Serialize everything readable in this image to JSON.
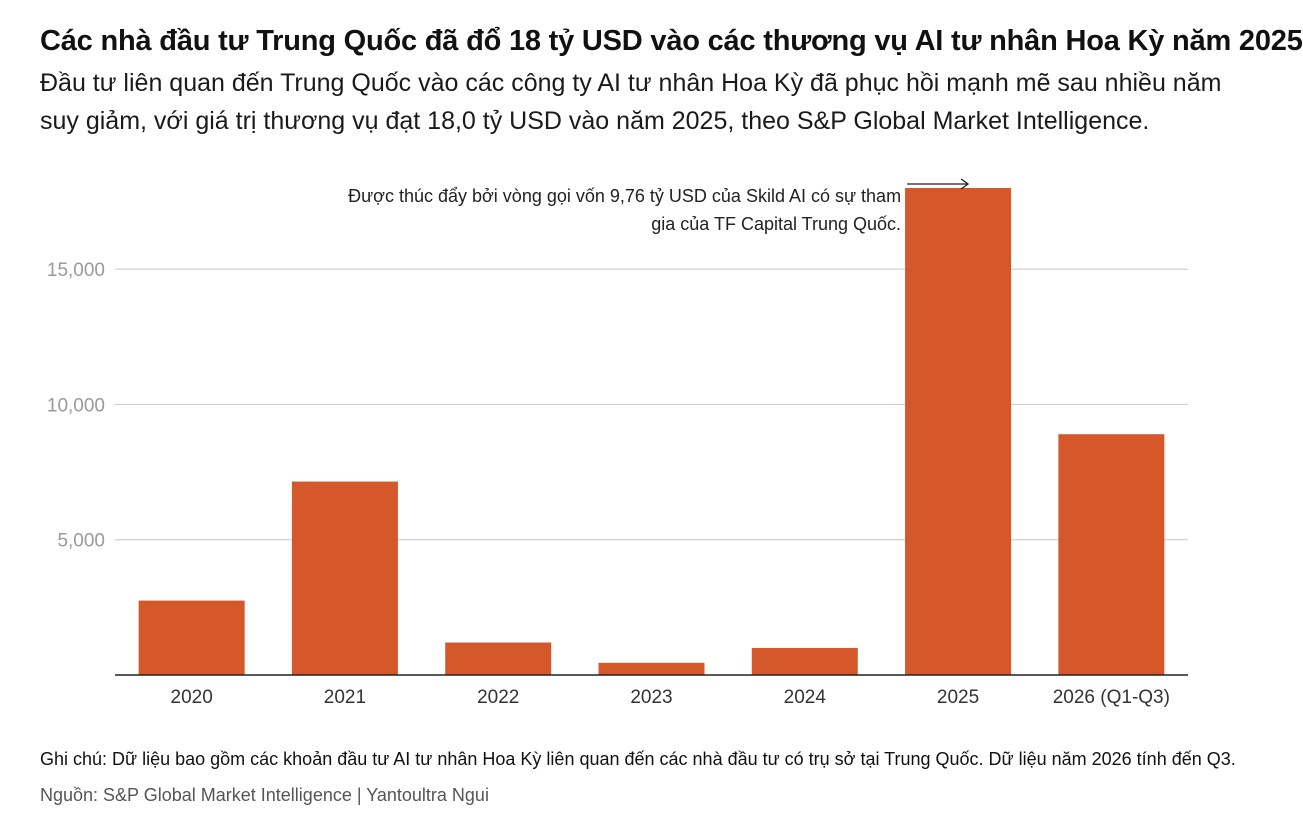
{
  "header": {
    "title": "Các nhà đầu tư Trung Quốc đã đổ 18 tỷ USD vào các thương vụ AI tư nhân Hoa Kỳ năm 2025",
    "subtitle": "Đầu tư liên quan đến Trung Quốc vào các công ty AI tư nhân Hoa Kỳ đã phục hồi mạnh mẽ sau nhiều năm suy giảm, với giá trị thương vụ đạt 18,0 tỷ USD vào năm 2025, theo S&P Global Market Intelligence."
  },
  "chart_data": {
    "type": "bar",
    "categories": [
      "2020",
      "2021",
      "2022",
      "2023",
      "2024",
      "2025",
      "2026 (Q1-Q3)"
    ],
    "values": [
      2750,
      7150,
      1200,
      450,
      1000,
      18000,
      8900
    ],
    "ylim": [
      0,
      18000
    ],
    "yticks": [
      5000,
      10000,
      15000
    ],
    "ytick_labels": [
      "5,000",
      "10,000",
      "15,000"
    ],
    "grid": true,
    "bar_color": "#d4582a",
    "annotation": {
      "category": "2025",
      "lines": [
        "Được thúc đẩy bởi vòng gọi vốn 9,76 tỷ USD của Skild AI có sự tham",
        "gia của TF Capital Trung Quốc."
      ]
    }
  },
  "footer": {
    "note": "Ghi chú: Dữ liệu bao gồm các khoản đầu tư AI tư nhân Hoa Kỳ liên quan đến các nhà đầu tư có trụ sở tại Trung Quốc. Dữ liệu năm 2026 tính đến Q3.",
    "source": "Nguồn: S&P Global Market Intelligence | Yantoultra Ngui"
  }
}
